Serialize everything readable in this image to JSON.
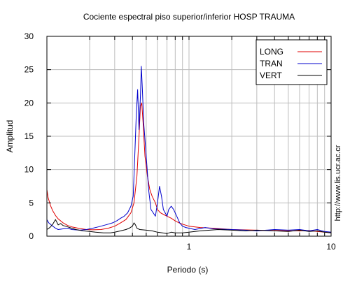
{
  "chart_data": {
    "type": "line",
    "title": "Cociente espectral piso superior/inferior  HOSP TRAUMA",
    "xlabel": "Periodo (s)",
    "ylabel": "Amplitud",
    "watermark": "http://www.lis.ucr.ac.cr",
    "x_scale": "log",
    "xlim": [
      0.1,
      10
    ],
    "ylim": [
      0,
      30
    ],
    "x_ticks": [
      {
        "value": 1,
        "label": "1"
      },
      {
        "value": 10,
        "label": "10"
      }
    ],
    "y_ticks": [
      0,
      5,
      10,
      15,
      20,
      25,
      30
    ],
    "grid": true,
    "legend_position": "top-right",
    "series": [
      {
        "name": "LONG",
        "color": "#e00000",
        "points": [
          [
            0.1,
            7.0
          ],
          [
            0.102,
            5.8
          ],
          [
            0.106,
            4.6
          ],
          [
            0.11,
            3.8
          ],
          [
            0.115,
            3.1
          ],
          [
            0.12,
            2.6
          ],
          [
            0.13,
            2.0
          ],
          [
            0.14,
            1.6
          ],
          [
            0.15,
            1.4
          ],
          [
            0.17,
            1.15
          ],
          [
            0.19,
            1.0
          ],
          [
            0.21,
            0.95
          ],
          [
            0.24,
            1.0
          ],
          [
            0.27,
            1.2
          ],
          [
            0.3,
            1.5
          ],
          [
            0.33,
            2.0
          ],
          [
            0.36,
            2.5
          ],
          [
            0.39,
            3.5
          ],
          [
            0.41,
            5.0
          ],
          [
            0.43,
            9.0
          ],
          [
            0.445,
            15.0
          ],
          [
            0.455,
            19.5
          ],
          [
            0.465,
            20.0
          ],
          [
            0.475,
            17.0
          ],
          [
            0.49,
            12.0
          ],
          [
            0.51,
            9.0
          ],
          [
            0.53,
            7.0
          ],
          [
            0.55,
            6.0
          ],
          [
            0.58,
            5.0
          ],
          [
            0.6,
            4.0
          ],
          [
            0.63,
            3.5
          ],
          [
            0.67,
            3.2
          ],
          [
            0.7,
            3.0
          ],
          [
            0.75,
            2.7
          ],
          [
            0.8,
            2.3
          ],
          [
            0.85,
            2.0
          ],
          [
            0.9,
            1.8
          ],
          [
            1.0,
            1.5
          ],
          [
            1.2,
            1.3
          ],
          [
            1.5,
            1.2
          ],
          [
            2.0,
            1.0
          ],
          [
            3.0,
            0.9
          ],
          [
            4.0,
            0.85
          ],
          [
            5.0,
            0.8
          ],
          [
            6.0,
            0.8
          ],
          [
            7.0,
            0.85
          ],
          [
            8.0,
            0.7
          ],
          [
            9.0,
            0.6
          ],
          [
            10.0,
            0.5
          ]
        ]
      },
      {
        "name": "TRAN",
        "color": "#0000cc",
        "points": [
          [
            0.1,
            2.5
          ],
          [
            0.103,
            2.0
          ],
          [
            0.107,
            1.7
          ],
          [
            0.11,
            1.5
          ],
          [
            0.115,
            1.2
          ],
          [
            0.12,
            1.0
          ],
          [
            0.13,
            1.1
          ],
          [
            0.14,
            1.2
          ],
          [
            0.15,
            1.0
          ],
          [
            0.17,
            0.9
          ],
          [
            0.19,
            1.0
          ],
          [
            0.21,
            1.2
          ],
          [
            0.23,
            1.4
          ],
          [
            0.25,
            1.6
          ],
          [
            0.27,
            1.8
          ],
          [
            0.29,
            2.0
          ],
          [
            0.31,
            2.3
          ],
          [
            0.33,
            2.7
          ],
          [
            0.35,
            3.0
          ],
          [
            0.37,
            3.5
          ],
          [
            0.39,
            4.5
          ],
          [
            0.405,
            6.0
          ],
          [
            0.415,
            12.0
          ],
          [
            0.425,
            18.0
          ],
          [
            0.435,
            22.0
          ],
          [
            0.445,
            16.0
          ],
          [
            0.455,
            21.0
          ],
          [
            0.462,
            25.5
          ],
          [
            0.47,
            22.0
          ],
          [
            0.48,
            17.0
          ],
          [
            0.5,
            12.0
          ],
          [
            0.52,
            7.0
          ],
          [
            0.54,
            4.0
          ],
          [
            0.56,
            3.5
          ],
          [
            0.58,
            3.0
          ],
          [
            0.6,
            5.0
          ],
          [
            0.62,
            7.5
          ],
          [
            0.64,
            6.0
          ],
          [
            0.66,
            4.0
          ],
          [
            0.68,
            3.5
          ],
          [
            0.7,
            3.0
          ],
          [
            0.72,
            4.0
          ],
          [
            0.75,
            4.5
          ],
          [
            0.78,
            4.0
          ],
          [
            0.82,
            3.0
          ],
          [
            0.86,
            2.0
          ],
          [
            0.9,
            1.5
          ],
          [
            0.95,
            1.3
          ],
          [
            1.0,
            1.2
          ],
          [
            1.1,
            1.0
          ],
          [
            1.3,
            1.3
          ],
          [
            1.5,
            1.1
          ],
          [
            2.0,
            1.0
          ],
          [
            2.5,
            0.9
          ],
          [
            3.0,
            0.8
          ],
          [
            4.0,
            1.0
          ],
          [
            5.0,
            0.9
          ],
          [
            6.0,
            1.0
          ],
          [
            7.0,
            0.8
          ],
          [
            8.0,
            1.0
          ],
          [
            9.0,
            0.7
          ],
          [
            10.0,
            0.6
          ]
        ]
      },
      {
        "name": "VERT",
        "color": "#000000",
        "points": [
          [
            0.1,
            1.0
          ],
          [
            0.105,
            1.3
          ],
          [
            0.11,
            1.8
          ],
          [
            0.115,
            2.5
          ],
          [
            0.12,
            1.7
          ],
          [
            0.125,
            1.9
          ],
          [
            0.13,
            1.6
          ],
          [
            0.14,
            1.4
          ],
          [
            0.15,
            1.2
          ],
          [
            0.16,
            1.0
          ],
          [
            0.18,
            0.8
          ],
          [
            0.2,
            0.7
          ],
          [
            0.22,
            0.6
          ],
          [
            0.25,
            0.5
          ],
          [
            0.28,
            0.5
          ],
          [
            0.3,
            0.6
          ],
          [
            0.33,
            0.8
          ],
          [
            0.36,
            1.0
          ],
          [
            0.38,
            1.2
          ],
          [
            0.4,
            1.5
          ],
          [
            0.41,
            2.0
          ],
          [
            0.42,
            1.7
          ],
          [
            0.43,
            1.2
          ],
          [
            0.45,
            1.0
          ],
          [
            0.5,
            0.9
          ],
          [
            0.55,
            0.8
          ],
          [
            0.6,
            0.6
          ],
          [
            0.65,
            0.5
          ],
          [
            0.7,
            0.4
          ],
          [
            0.75,
            0.6
          ],
          [
            0.8,
            0.5
          ],
          [
            0.9,
            0.5
          ],
          [
            1.0,
            0.6
          ],
          [
            1.2,
            0.8
          ],
          [
            1.4,
            0.9
          ],
          [
            1.6,
            1.0
          ],
          [
            2.0,
            0.9
          ],
          [
            2.5,
            0.8
          ],
          [
            3.0,
            0.9
          ],
          [
            4.0,
            0.8
          ],
          [
            5.0,
            0.7
          ],
          [
            6.0,
            0.9
          ],
          [
            7.0,
            0.7
          ],
          [
            8.0,
            0.8
          ],
          [
            9.0,
            0.6
          ],
          [
            10.0,
            0.5
          ]
        ]
      }
    ]
  }
}
